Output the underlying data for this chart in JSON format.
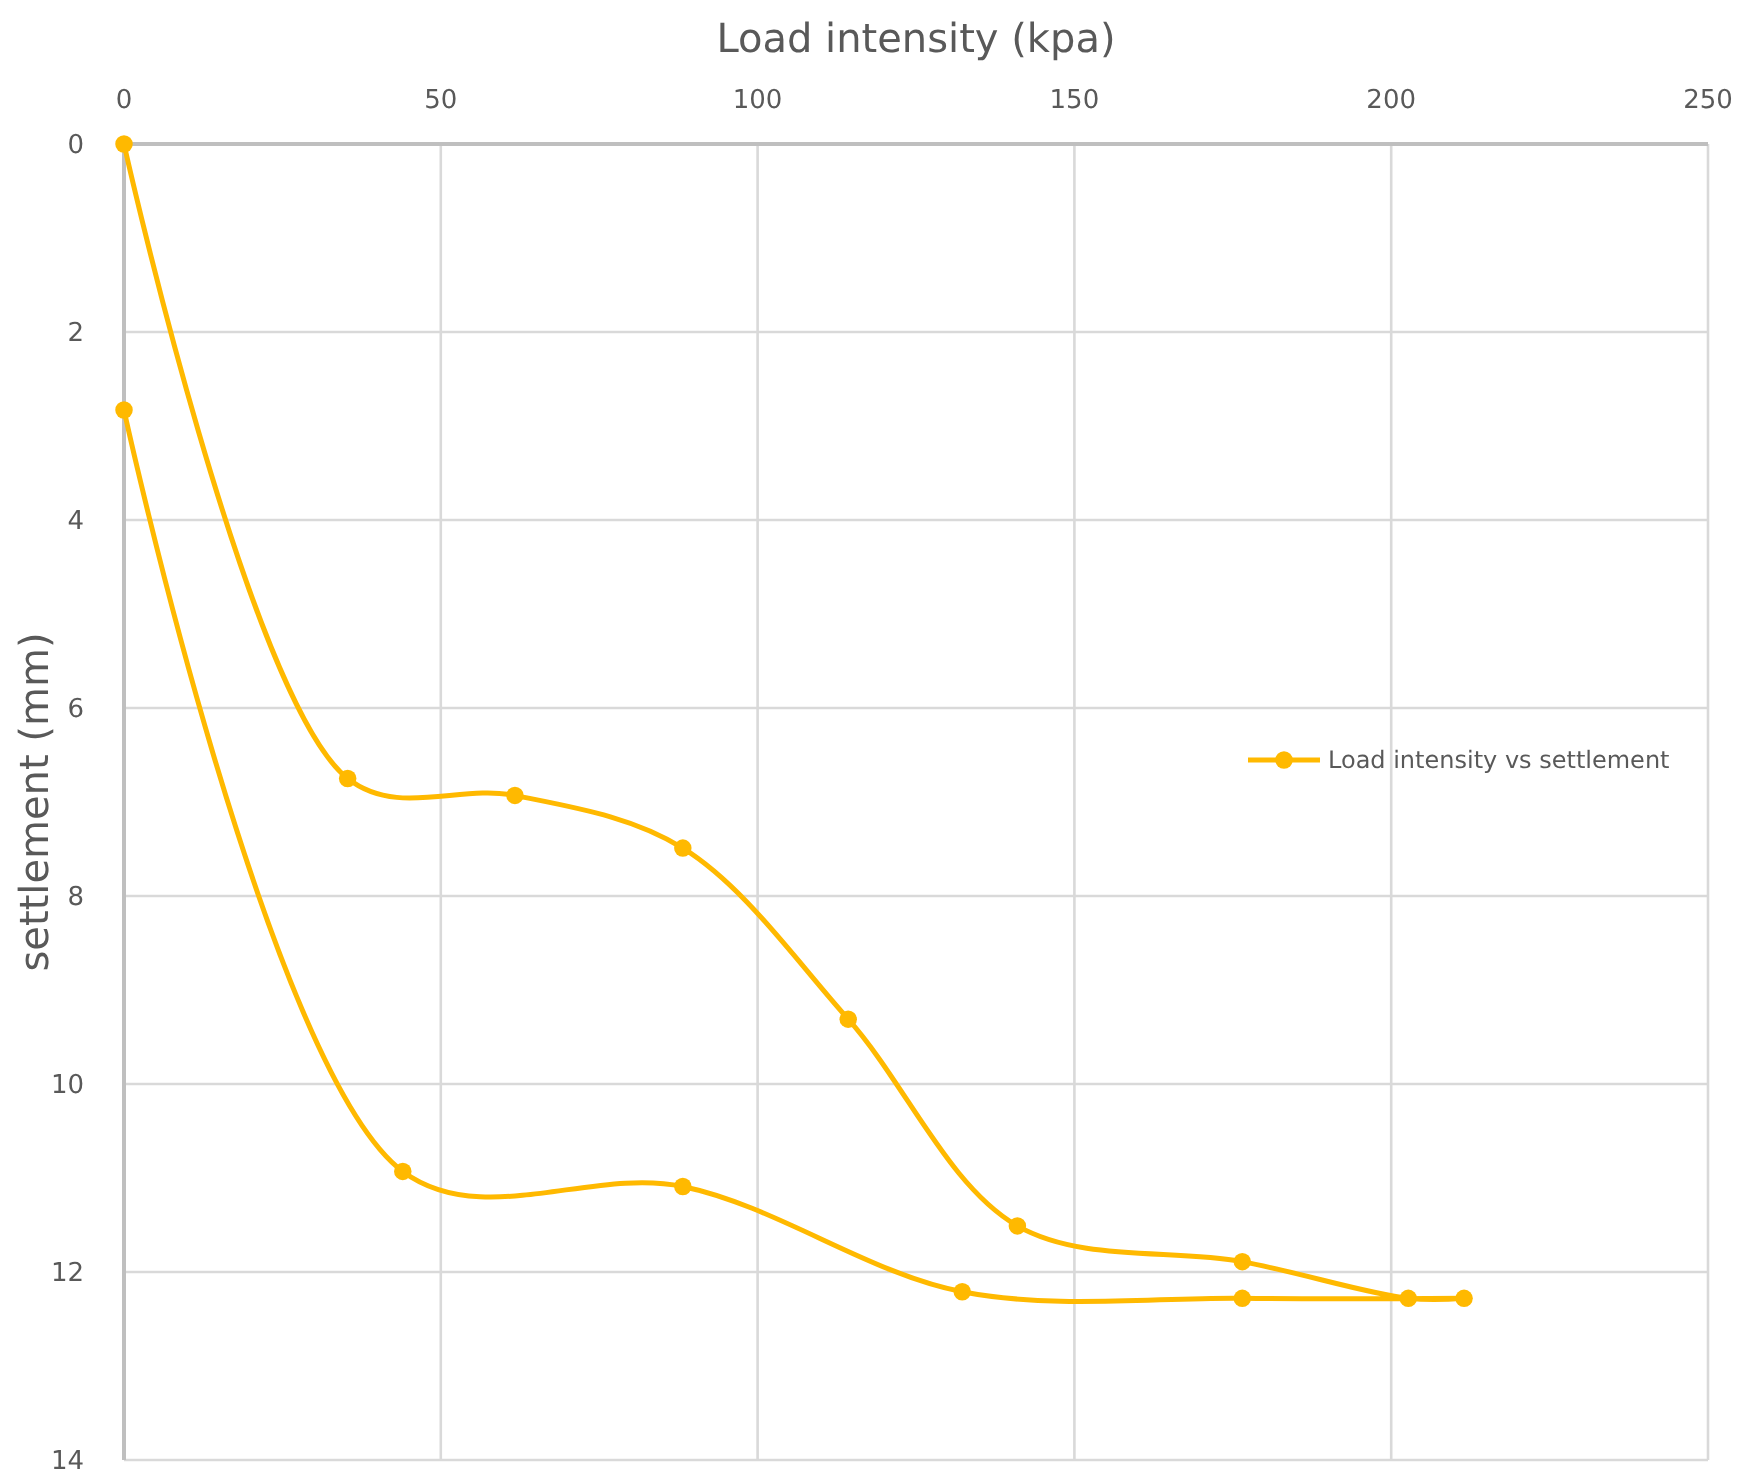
{
  "chart_data": {
    "type": "line",
    "xlabel": "Load intensity (kpa)",
    "ylabel": "settlement (mm)",
    "xlim": [
      0,
      250
    ],
    "xticks": [
      0,
      50,
      100,
      150,
      200,
      250
    ],
    "ylim": [
      14,
      0
    ],
    "yticks": [
      0,
      2,
      4,
      6,
      8,
      10,
      12,
      14
    ],
    "grid": true,
    "legend": "right",
    "marker": "circle",
    "line_style": "solid",
    "series": [
      {
        "name": "Load intensity vs settlement",
        "color": "#ffb900",
        "x": [
          0,
          35.3,
          61.7,
          88.2,
          114.3,
          141,
          176.5,
          202.7,
          211.5,
          176.5,
          132.3,
          88.2,
          44,
          0
        ],
        "values": [
          0,
          6.75,
          6.93,
          7.49,
          9.31,
          11.51,
          11.89,
          12.28,
          12.28,
          12.28,
          12.21,
          11.09,
          10.93,
          2.83
        ]
      }
    ]
  }
}
